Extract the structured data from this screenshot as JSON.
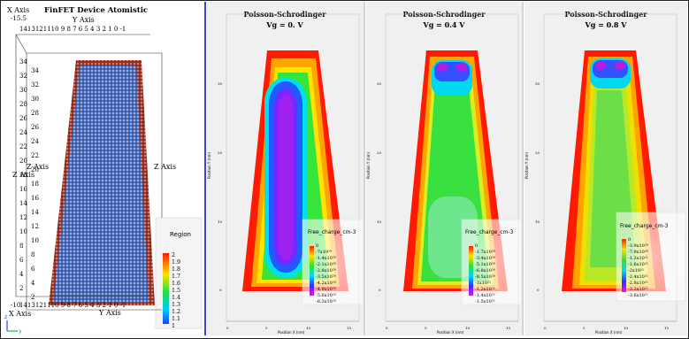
{
  "atom_view": {
    "title": "FinFET Device Atomistic",
    "x_axis_top": "X Axis",
    "x_axis_top_value": "-15.5",
    "y_axis_top": "Y Axis",
    "y_axis_top_ticks": "1413121110 9 8 7 6 5 4 3 2 1 0 -1",
    "z_axis_left": "Z Axis",
    "z_axis_right": "Z Axis",
    "x_axis_bottom": "X Axis",
    "x_axis_bottom_value": "-10",
    "y_axis_bottom": "Y Axis",
    "y_axis_bottom_ticks": "1413121110 9 8 7 6 5 4 3 2 1 0 -1",
    "z_ticks": [
      "34",
      "32",
      "30",
      "28",
      "26",
      "24",
      "22",
      "20",
      "18",
      "16",
      "14",
      "12",
      "10",
      "8",
      "6",
      "4",
      "2",
      "0"
    ],
    "legend": {
      "title": "Region",
      "labels": [
        "2",
        "1.9",
        "1.8",
        "1.7",
        "1.6",
        "1.5",
        "1.4",
        "1.3",
        "1.2",
        "1.1",
        "1"
      ]
    },
    "triad": {
      "z": "z",
      "y": "y"
    },
    "colors": {
      "atoms": "#5577c8",
      "edge": "#c85a4a"
    }
  },
  "plots": [
    {
      "title": "Poisson-Schrodinger",
      "subtitle": "Vg = 0. V",
      "y_label": "Position Y (nm)",
      "x_label": "Position X (nm)",
      "legend_title": "Free_charge_cm-3",
      "legend_labels": [
        "0",
        "-7x10¹⁹",
        "-1.4x10²⁰",
        "-2.1x10²⁰",
        "-2.8x10²⁰",
        "-3.5x10²⁰",
        "-4.2x10²⁰",
        "-4.9x10²⁰",
        "-5.6x10²⁰",
        "-6.3x10²⁰"
      ],
      "x_ticks": [
        "0",
        "5",
        "10",
        "15"
      ],
      "y_ticks": [
        "0",
        "10",
        "20",
        "30"
      ]
    },
    {
      "title": "Poisson-Schrodinger",
      "subtitle": "Vg = 0.4 V",
      "y_label": "Position Y (nm)",
      "x_label": "Position X (nm)",
      "legend_title": "Free_charge_cm-3",
      "legend_labels": [
        "0",
        "-1.7x10²⁰",
        "-3.4x10²⁰",
        "-5.1x10²⁰",
        "-6.8x10²⁰",
        "-8.5x10²⁰",
        "-1x10²¹",
        "-1.2x10²¹",
        "-1.4x10²¹",
        "-1.5x10²¹"
      ],
      "x_ticks": [
        "0",
        "5",
        "10",
        "15"
      ],
      "y_ticks": [
        "0",
        "10",
        "20",
        "30"
      ]
    },
    {
      "title": "Poisson-Schrodinger",
      "subtitle": "Vg = 0.8 V",
      "y_label": "Position Y (nm)",
      "x_label": "Position X (nm)",
      "legend_title": "Free_charge_cm-3",
      "legend_labels": [
        "0",
        "-3.9x10²⁰",
        "-7.9x10²⁰",
        "-1.2x10²¹",
        "-1.6x10²¹",
        "-2x10²¹",
        "-2.4x10²¹",
        "-2.8x10²¹",
        "-3.2x10²¹",
        "-3.6x10²¹"
      ],
      "x_ticks": [
        "0",
        "5",
        "10",
        "15"
      ],
      "y_ticks": [
        "0",
        "10",
        "20",
        "30"
      ]
    }
  ],
  "colors": {
    "separator_blue": "#3d47c6",
    "separator_gray": "#cfd3dd",
    "panel_bg": "#f0f0f0"
  }
}
